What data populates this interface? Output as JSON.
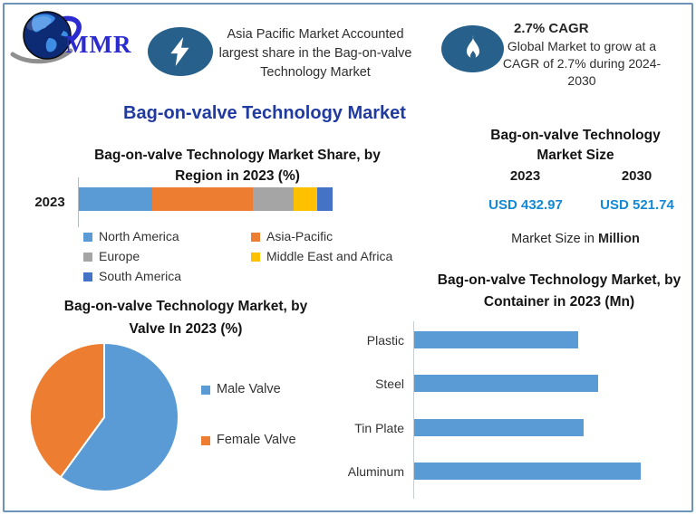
{
  "logo": {
    "text": "MMR"
  },
  "callouts": [
    {
      "icon": "lightning",
      "text": "Asia Pacific Market Accounted largest share in the Bag-on-valve Technology Market",
      "lines": [
        "Asia Pacific Market Accounted",
        "largest share in the Bag-on-valve",
        "Technology Market"
      ]
    },
    {
      "icon": "flame",
      "heading": "2.7% CAGR",
      "text": "Global Market to grow at a CAGR of 2.7% during 2024-2030",
      "body_lines": [
        "Global Market to grow at a",
        "CAGR of 2.7% during 2024-",
        "2030"
      ]
    }
  ],
  "main_title": "Bag-on-valve Technology Market",
  "market_size": {
    "title": "Bag-on-valve Technology Market Size",
    "title_lines": [
      "Bag-on-valve Technology",
      "Market Size"
    ],
    "year_left": "2023",
    "year_right": "2030",
    "value_left": "USD 432.97",
    "value_right": "USD 521.74",
    "footnote_prefix": "Market Size in ",
    "footnote_bold": "Million"
  },
  "colors": {
    "accent_navy": "#203aa0",
    "usd_blue": "#1389d6",
    "icon_ellipse_bg": "#27608a",
    "frame_border": "#6d94b8",
    "chart_blue": "#5B9BD5",
    "chart_orange": "#ED7D31",
    "chart_gray": "#A5A5A5",
    "chart_yellow": "#FFC000",
    "chart_darkblue": "#4472C4"
  },
  "chart_data": [
    {
      "id": "region-share",
      "type": "bar",
      "subtype": "stacked-horizontal",
      "title": "Bag-on-valve Technology Market Share, by Region in 2023 (%)",
      "title_lines": [
        "Bag-on-valve Technology Market Share, by",
        "Region in 2023 (%)"
      ],
      "categories": [
        "2023"
      ],
      "series": [
        {
          "name": "North America",
          "color": "#5B9BD5",
          "values": [
            29
          ]
        },
        {
          "name": "Asia-Pacific",
          "color": "#ED7D31",
          "values": [
            39.5
          ]
        },
        {
          "name": "Europe",
          "color": "#A5A5A5",
          "values": [
            16
          ]
        },
        {
          "name": "Middle East and Africa",
          "color": "#FFC000",
          "values": [
            9.5
          ]
        },
        {
          "name": "South America",
          "color": "#4472C4",
          "values": [
            6
          ]
        }
      ],
      "xlim": [
        0,
        100
      ],
      "grid": false,
      "legend_position": "bottom",
      "note": "segment sizes estimated from bar widths; no data labels shown"
    },
    {
      "id": "valve-split",
      "type": "pie",
      "title": "Bag-on-valve Technology Market, by Valve In 2023 (%)",
      "title_lines": [
        "Bag-on-valve Technology Market, by",
        "Valve In 2023 (%)"
      ],
      "labels": [
        "Male Valve",
        "Female Valve"
      ],
      "values": [
        60,
        40
      ],
      "colors": [
        "#5B9BD5",
        "#ED7D31"
      ],
      "legend_position": "right",
      "note": "slice sizes estimated from angles; no data labels shown"
    },
    {
      "id": "container-size",
      "type": "bar",
      "subtype": "horizontal",
      "title": "Bag-on-valve Technology Market, by Container in 2023 (Mn)",
      "title_lines": [
        "Bag-on-valve Technology Market, by",
        "Container in 2023 (Mn)"
      ],
      "categories": [
        "Plastic",
        "Steel",
        "Tin Plate",
        "Aluminum"
      ],
      "values": [
        72.4,
        81.2,
        74.8,
        100
      ],
      "units": "relative bar length, Aluminum = 100 (axis unlabeled, Mn)",
      "color": "#5B9BD5",
      "grid": false
    }
  ]
}
